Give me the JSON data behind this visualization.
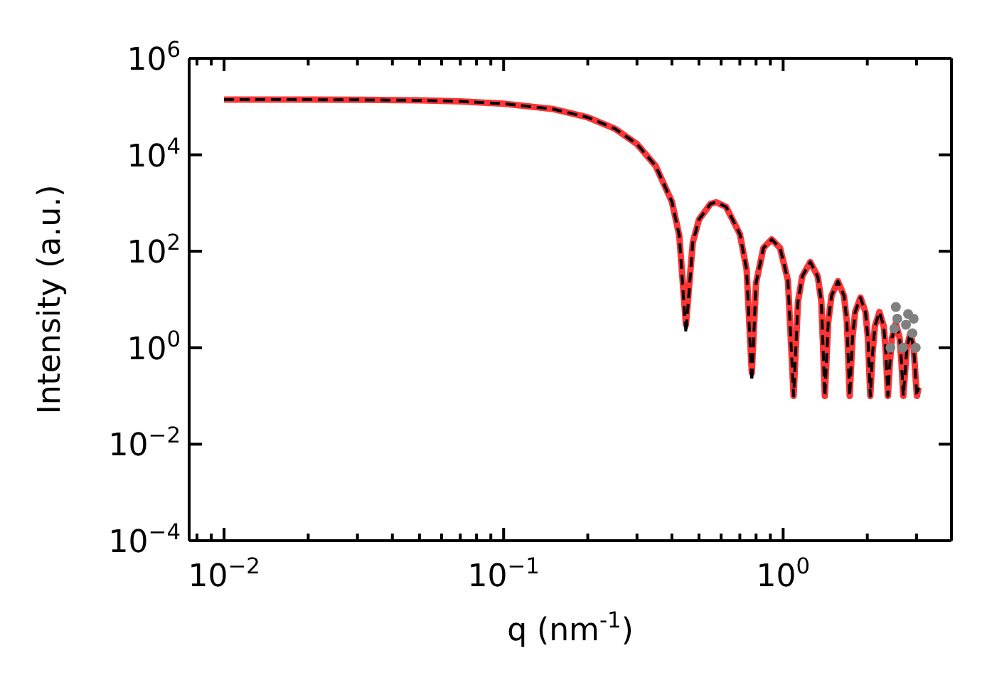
{
  "chart_data": {
    "type": "line",
    "xlabel": "q (nm$^{-1}$)",
    "ylabel": "Intensity (a.u.)",
    "log": "xy",
    "xlim": [
      0.0075,
      4
    ],
    "ylim": [
      0.0001,
      1000000
    ],
    "xticks": [
      {
        "value": 0.01,
        "label": "10$^{−2}$"
      },
      {
        "value": 0.02,
        "label": null
      },
      {
        "value": 0.03,
        "label": null
      },
      {
        "value": 0.04,
        "label": null
      },
      {
        "value": 0.05,
        "label": null
      },
      {
        "value": 0.06,
        "label": null
      },
      {
        "value": 0.07,
        "label": null
      },
      {
        "value": 0.08,
        "label": null
      },
      {
        "value": 0.09,
        "label": null
      },
      {
        "value": 0.1,
        "label": "10$^{−1}$"
      },
      {
        "value": 0.2,
        "label": null
      },
      {
        "value": 0.3,
        "label": null
      },
      {
        "value": 0.4,
        "label": null
      },
      {
        "value": 0.5,
        "label": null
      },
      {
        "value": 0.6,
        "label": null
      },
      {
        "value": 0.7,
        "label": null
      },
      {
        "value": 0.8,
        "label": null
      },
      {
        "value": 0.9,
        "label": null
      },
      {
        "value": 1,
        "label": "10$^{0}$"
      },
      {
        "value": 2,
        "label": null
      },
      {
        "value": 3,
        "label": null
      },
      {
        "value": 0.008,
        "label": null
      },
      {
        "value": 0.009,
        "label": null
      }
    ],
    "yticks": [
      {
        "value": 0.0001,
        "label": "10$^{−4}$"
      },
      {
        "value": 0.01,
        "label": "10$^{−2}$"
      },
      {
        "value": 1,
        "label": "10$^{0}$"
      },
      {
        "value": 100,
        "label": "10$^{2}$"
      },
      {
        "value": 10000,
        "label": "10$^{4}$"
      },
      {
        "value": 1000000,
        "label": "10$^{6}$"
      }
    ],
    "series": [
      {
        "type": "line",
        "color": "#ff3535",
        "line_style": "solid",
        "marker": "none",
        "x": [
          0.01,
          0.02,
          0.03,
          0.05,
          0.07,
          0.1,
          0.15,
          0.2,
          0.25,
          0.3,
          0.35,
          0.4,
          0.425,
          0.449,
          0.475,
          0.5,
          0.55,
          0.576,
          0.625,
          0.7,
          0.74,
          0.7725,
          0.8,
          0.85,
          0.91,
          0.975,
          1.04,
          1.09,
          1.13,
          1.17,
          1.25,
          1.33,
          1.37,
          1.41,
          1.45,
          1.49,
          1.57,
          1.65,
          1.69,
          1.73,
          1.77,
          1.81,
          1.89,
          1.97,
          2.01,
          2.05,
          2.09,
          2.13,
          2.21,
          2.29,
          2.33,
          2.37,
          2.41,
          2.45,
          2.53,
          2.61,
          2.65,
          2.69,
          2.73,
          2.77,
          2.85,
          2.93,
          2.97,
          3.01,
          3.05
        ],
        "values": [
          140000,
          139000,
          138000,
          135000,
          128000,
          115000,
          89000,
          59700,
          34900,
          16700,
          5870,
          1060,
          214,
          3,
          151,
          456,
          964,
          1040,
          834,
          228,
          42,
          0.3,
          22,
          117,
          177,
          117,
          25,
          0.1,
          9,
          30,
          60,
          30,
          9,
          0.1,
          3.5,
          12,
          24,
          12,
          3.5,
          0.1,
          1.6,
          5.5,
          11,
          5.5,
          1.6,
          0.1,
          0.8,
          2.8,
          5.5,
          2.8,
          0.8,
          0.1,
          0.5,
          1.6,
          3.2,
          1.6,
          0.5,
          0.1,
          0.3,
          1,
          2,
          1,
          0.3,
          0.1,
          0.15
        ]
      },
      {
        "type": "line",
        "color": "#000000",
        "line_style": "dashed",
        "marker": "none",
        "x": [
          0.01,
          0.02,
          0.03,
          0.05,
          0.07,
          0.1,
          0.15,
          0.2,
          0.25,
          0.3,
          0.35,
          0.4,
          0.425,
          0.449,
          0.475,
          0.5,
          0.55,
          0.576,
          0.625,
          0.7,
          0.74,
          0.7725,
          0.8,
          0.85,
          0.91,
          0.975,
          1.04,
          1.09,
          1.13,
          1.17,
          1.25,
          1.33,
          1.37,
          1.41,
          1.45,
          1.49,
          1.57,
          1.65,
          1.69,
          1.73,
          1.77,
          1.81,
          1.89,
          1.97,
          2.01,
          2.05,
          2.09,
          2.13,
          2.21,
          2.29,
          2.33,
          2.37,
          2.41,
          2.45,
          2.53,
          2.61,
          2.65,
          2.69,
          2.73,
          2.77,
          2.85,
          2.93,
          2.97,
          3.01,
          3.05
        ],
        "values": [
          140000,
          139000,
          138000,
          135000,
          128000,
          115000,
          89000,
          59700,
          34900,
          16700,
          5870,
          1060,
          214,
          2,
          151,
          456,
          964,
          1040,
          834,
          228,
          42,
          0.2,
          22,
          117,
          177,
          117,
          25,
          0.1,
          9,
          30,
          60,
          30,
          9,
          0.1,
          3.5,
          12,
          24,
          12,
          3.5,
          0.1,
          1.6,
          5.5,
          11,
          5.5,
          1.6,
          0.1,
          0.8,
          2.8,
          5.5,
          2.8,
          0.8,
          0.1,
          0.5,
          1.6,
          3.2,
          1.6,
          0.5,
          0.1,
          0.3,
          1,
          2,
          1,
          0.3,
          0.1,
          0.15
        ]
      },
      {
        "type": "scatter",
        "color": "#808080",
        "marker": "circle",
        "x": [
          2.42,
          2.68,
          2.98,
          2.5,
          2.53,
          2.56,
          2.75,
          2.8,
          2.9,
          2.93
        ],
        "values": [
          1,
          1,
          1,
          2.5,
          7,
          4,
          3,
          5,
          2,
          4
        ]
      }
    ]
  }
}
